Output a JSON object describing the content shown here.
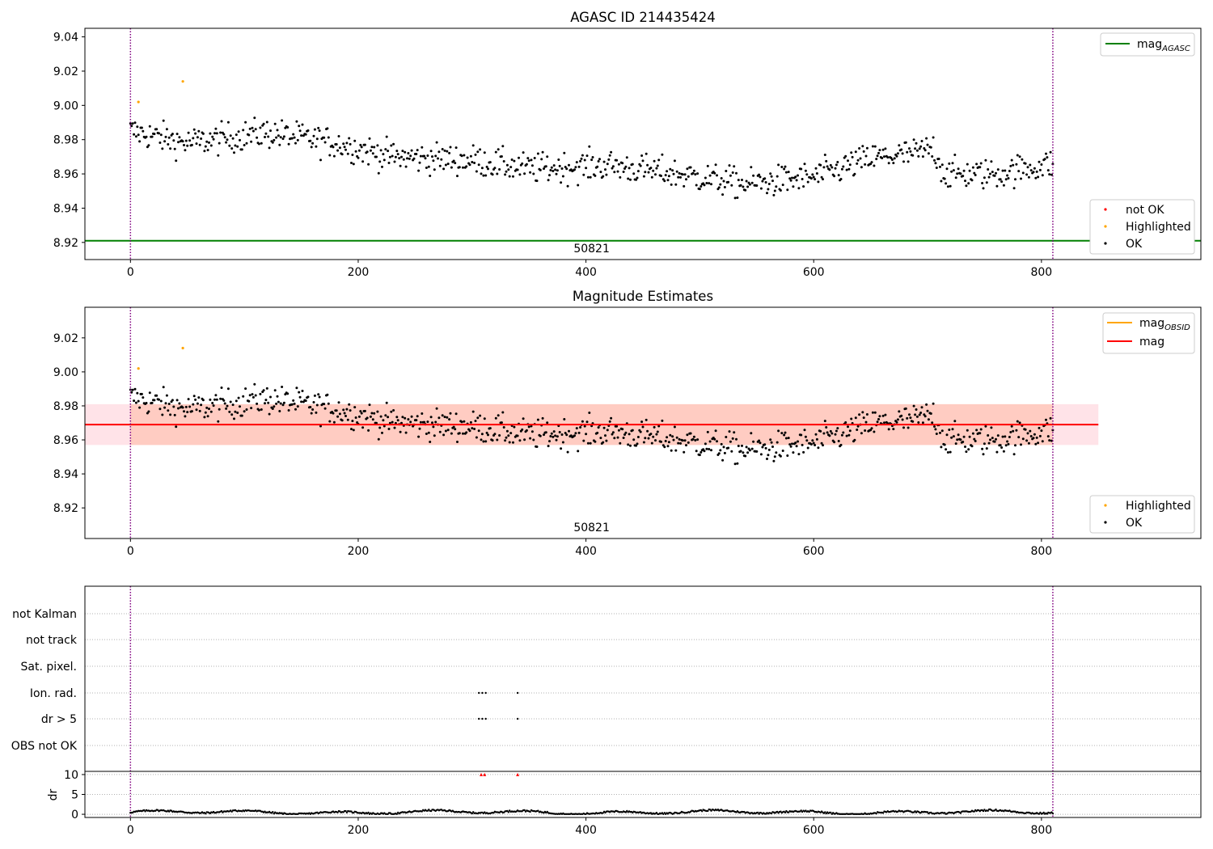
{
  "colors": {
    "ok": "#000000",
    "highlighted": "#ffa500",
    "not_ok": "#ff0000",
    "agasc_line": "#008000",
    "mag_line": "#ff0000",
    "band_pink": "#ffc0cb",
    "band_orange": "#ffa07a",
    "vline": "#800080",
    "grid": "#b0b0b0"
  },
  "chart_data": [
    {
      "type": "scatter",
      "title": "AGASC ID 214435424",
      "xlim": [
        -40,
        940
      ],
      "ylim": [
        8.91,
        9.045
      ],
      "x_ticks": [
        0,
        200,
        400,
        600,
        800
      ],
      "y_ticks": [
        8.92,
        8.94,
        8.96,
        8.98,
        9.0,
        9.02,
        9.04
      ],
      "y_tick_labels": [
        "8.92",
        "8.94",
        "8.96",
        "8.98",
        "9.00",
        "9.02",
        "9.04"
      ],
      "obsid_label": "50821",
      "obsid_label_x": 400,
      "obsid_boundaries": [
        0,
        810
      ],
      "hlines": [
        {
          "name": "mag_AGASC",
          "y": 8.921,
          "color": "green"
        }
      ],
      "legend_lines": [
        {
          "text": "mag",
          "sub": "AGASC",
          "color": "green"
        }
      ],
      "legend_markers": [
        {
          "text": "not OK",
          "color": "red"
        },
        {
          "text": "Highlighted",
          "color": "orange"
        },
        {
          "text": "OK",
          "color": "black"
        }
      ],
      "highlighted_points": [
        {
          "x": 7,
          "y": 9.002
        },
        {
          "x": 46,
          "y": 9.014
        }
      ],
      "ok_points_summary": {
        "n": 810,
        "x_range": [
          0,
          810
        ],
        "y_range": [
          8.94,
          8.999
        ]
      }
    },
    {
      "type": "scatter",
      "title": "Magnitude Estimates",
      "xlim": [
        -40,
        940
      ],
      "ylim": [
        8.902,
        9.038
      ],
      "x_ticks": [
        0,
        200,
        400,
        600,
        800
      ],
      "y_ticks": [
        8.92,
        8.94,
        8.96,
        8.98,
        9.0,
        9.02
      ],
      "y_tick_labels": [
        "8.92",
        "8.94",
        "8.96",
        "8.98",
        "9.00",
        "9.02"
      ],
      "obsid_label": "50821",
      "obsid_label_x": 400,
      "obsid_boundaries": [
        0,
        810
      ],
      "mag": 8.969,
      "band_total": [
        8.957,
        8.981
      ],
      "band_obsid": [
        8.957,
        8.981
      ],
      "band_obsid_x": [
        0,
        810
      ],
      "band_total_x": [
        -40,
        850
      ],
      "legend_lines": [
        {
          "text": "mag",
          "sub": "OBSID",
          "color": "orange"
        },
        {
          "text": "mag",
          "sub": "",
          "color": "red"
        }
      ],
      "legend_markers": [
        {
          "text": "Highlighted",
          "color": "orange"
        },
        {
          "text": "OK",
          "color": "black"
        }
      ],
      "highlighted_points": [
        {
          "x": 7,
          "y": 9.002
        },
        {
          "x": 46,
          "y": 9.014
        }
      ]
    },
    {
      "type": "scatter",
      "xlim": [
        -40,
        940
      ],
      "flag_labels": [
        "not Kalman",
        "not track",
        "Sat. pixel.",
        "Ion. rad.",
        "dr > 5",
        "OBS not OK"
      ],
      "flag_points": {
        "Ion. rad.": [
          306,
          309,
          312,
          340
        ],
        "dr > 5": [
          306,
          309,
          312,
          340
        ]
      },
      "obsid_boundaries": [
        0,
        810
      ]
    },
    {
      "type": "scatter",
      "xlim": [
        -40,
        940
      ],
      "ylim": [
        -0.8,
        10.8
      ],
      "x_ticks": [
        0,
        200,
        400,
        600,
        800
      ],
      "y_ticks": [
        0,
        5,
        10
      ],
      "ylabel": "dr",
      "dr_capped_points": [
        {
          "x": 308,
          "y": 10
        },
        {
          "x": 311,
          "y": 10
        },
        {
          "x": 340,
          "y": 10
        }
      ],
      "dr_summary": {
        "n": 810,
        "y_range": [
          0.1,
          1.3
        ]
      }
    }
  ]
}
